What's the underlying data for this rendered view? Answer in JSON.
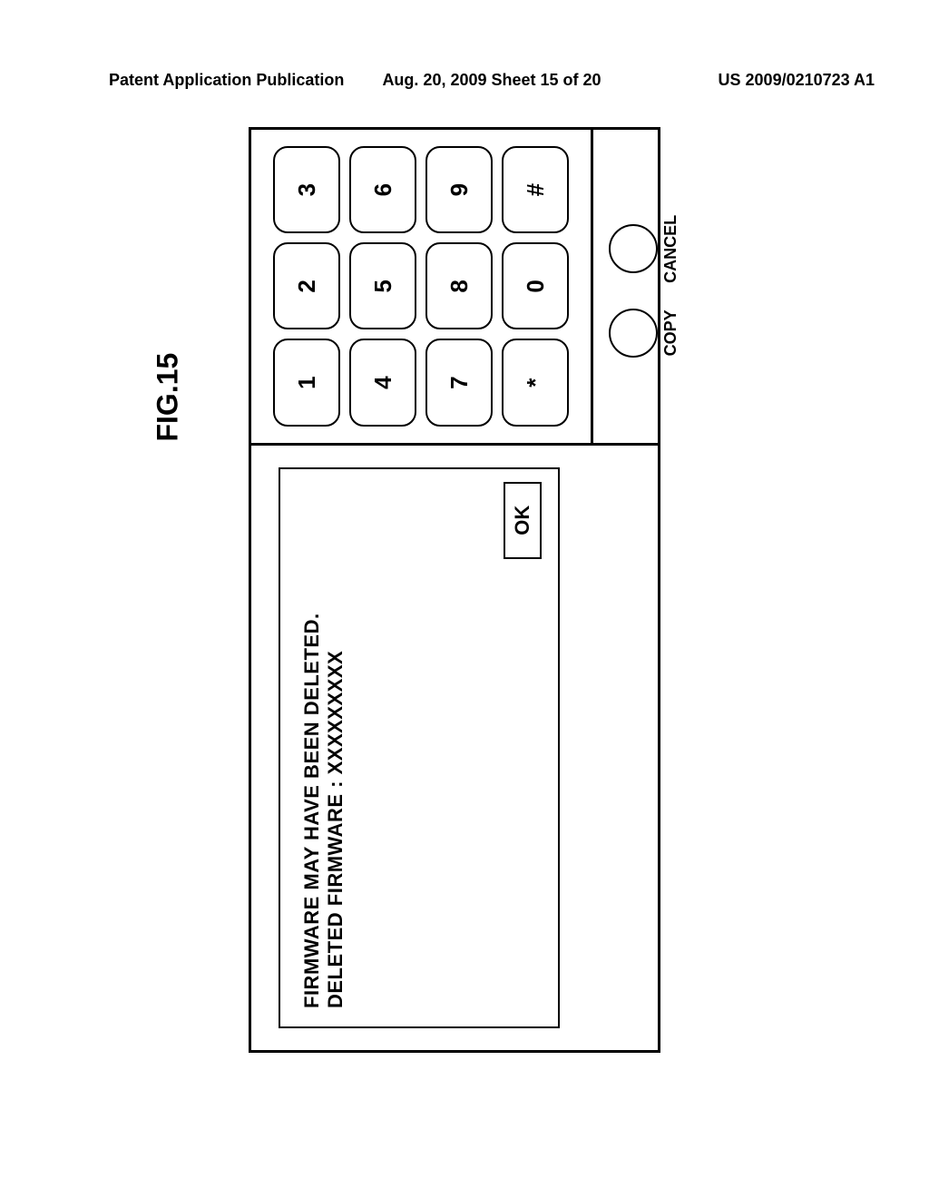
{
  "header": {
    "left": "Patent Application Publication",
    "mid": "Aug. 20, 2009  Sheet 15 of 20",
    "right": "US 2009/0210723 A1"
  },
  "figure_label": "FIG.15",
  "display": {
    "line1": "FIRMWARE MAY HAVE BEEN DELETED.",
    "line2": "DELETED FIRMWARE : XXXXXXXXX",
    "ok_label": "OK"
  },
  "keypad": {
    "keys": [
      "1",
      "2",
      "3",
      "4",
      "5",
      "6",
      "7",
      "8",
      "9",
      "*",
      "0",
      "#"
    ]
  },
  "actions": {
    "copy": "COPY",
    "cancel": "CANCEL"
  }
}
